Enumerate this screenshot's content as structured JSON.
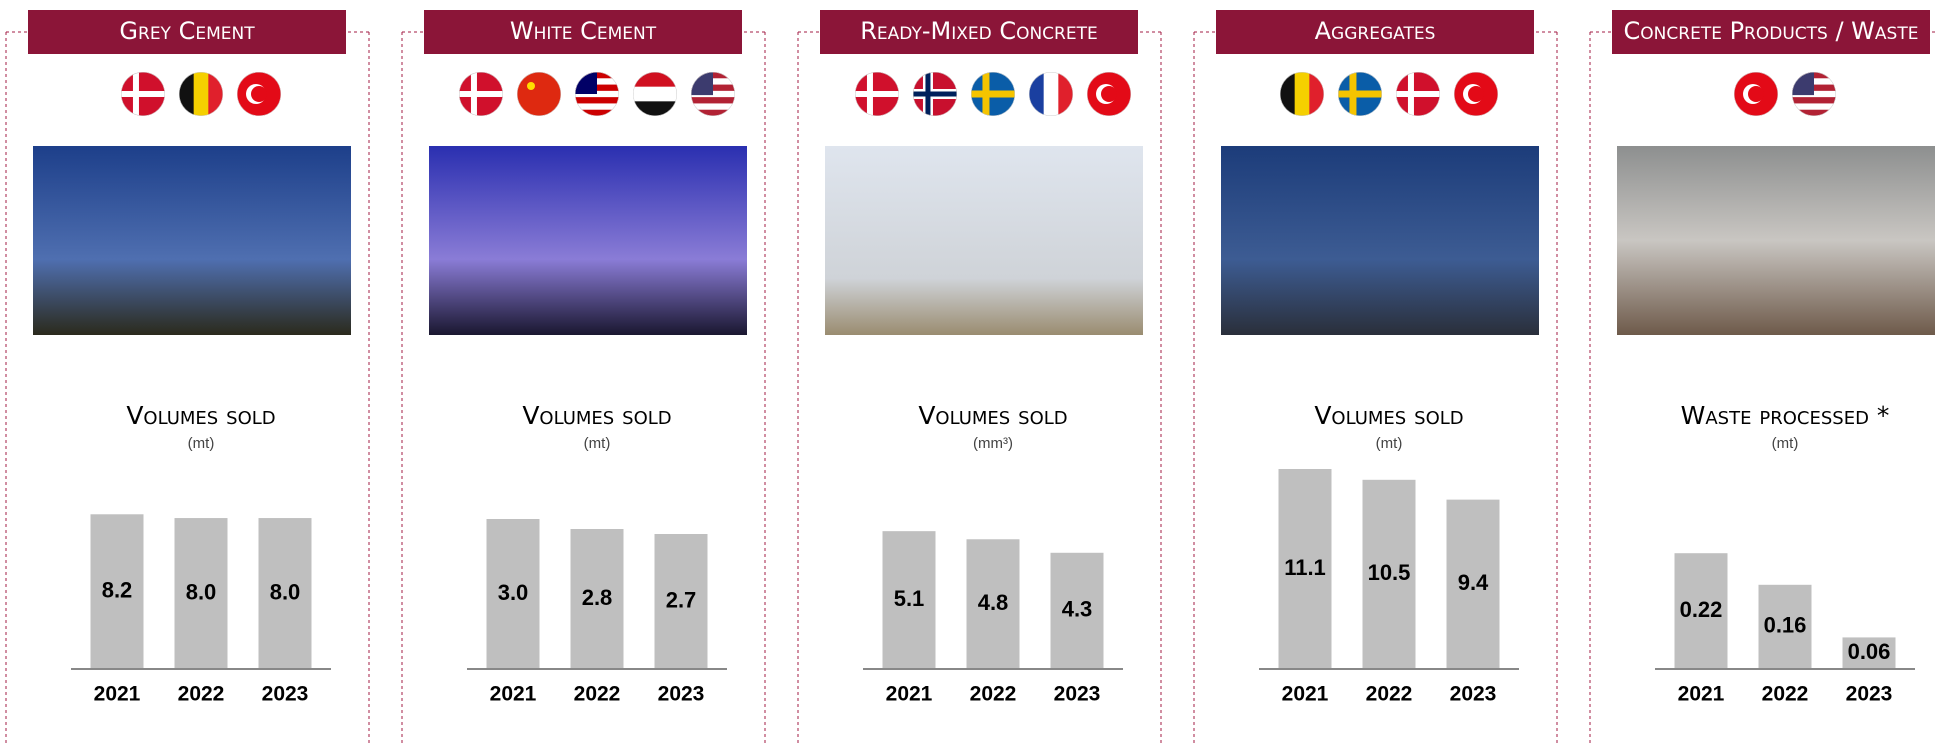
{
  "chart_data": [
    {
      "type": "bar",
      "title": "Grey Cement",
      "subtitle": "Volumes sold",
      "unit": "(mt)",
      "categories": [
        "2021",
        "2022",
        "2023"
      ],
      "values": [
        8.2,
        8.0,
        8.0
      ],
      "value_labels": [
        "8.2",
        "8.0",
        "8.0"
      ],
      "color": "#bfbfbf",
      "ylim": [
        0,
        10.6
      ]
    },
    {
      "type": "bar",
      "title": "White Cement",
      "subtitle": "Volumes sold",
      "unit": "(mt)",
      "categories": [
        "2021",
        "2022",
        "2023"
      ],
      "values": [
        3.0,
        2.8,
        2.7
      ],
      "value_labels": [
        "3.0",
        "2.8",
        "2.7"
      ],
      "color": "#bfbfbf",
      "ylim": [
        0,
        4.0
      ]
    },
    {
      "type": "bar",
      "title": "Ready-Mixed Concrete",
      "subtitle": "Volumes sold",
      "unit": "(mm³)",
      "categories": [
        "2021",
        "2022",
        "2023"
      ],
      "values": [
        5.1,
        4.8,
        4.3
      ],
      "value_labels": [
        "5.1",
        "4.8",
        "4.3"
      ],
      "color": "#bfbfbf",
      "ylim": [
        0,
        7.4
      ]
    },
    {
      "type": "bar",
      "title": "Aggregates",
      "subtitle": "Volumes sold",
      "unit": "(mt)",
      "categories": [
        "2021",
        "2022",
        "2023"
      ],
      "values": [
        11.1,
        10.5,
        9.4
      ],
      "value_labels": [
        "11.1",
        "10.5",
        "9.4"
      ],
      "color": "#bfbfbf",
      "ylim": [
        0,
        11.1
      ]
    },
    {
      "type": "bar",
      "title": "Concrete Products / Waste",
      "subtitle": "Waste processed *",
      "unit": "(mt)",
      "categories": [
        "2021",
        "2022",
        "2023"
      ],
      "values": [
        0.22,
        0.16,
        0.06
      ],
      "value_labels": [
        "0.22",
        "0.16",
        "0.06"
      ],
      "color": "#bfbfbf",
      "ylim": [
        0,
        0.38
      ]
    }
  ]
}
